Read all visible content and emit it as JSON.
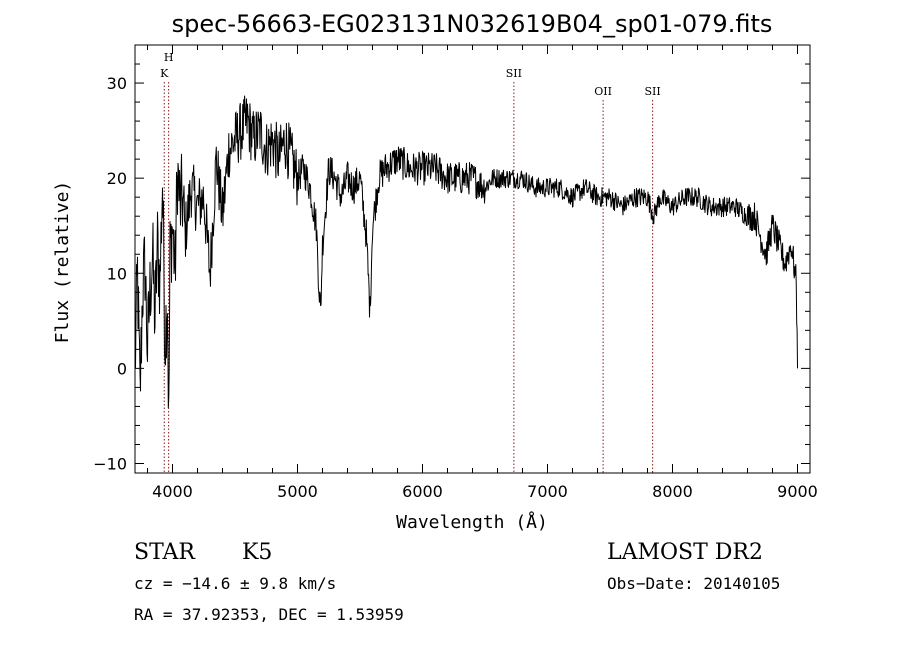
{
  "chart_data": {
    "type": "line",
    "title": "spec-56663-EG023131N032619B04_sp01-079.fits",
    "xlabel": "Wavelength (Å)",
    "ylabel": "Flux (relative)",
    "xlim": [
      3700,
      9100
    ],
    "ylim": [
      -11,
      34
    ],
    "xticks": [
      4000,
      5000,
      6000,
      7000,
      8000,
      9000
    ],
    "yticks": [
      -10,
      0,
      10,
      20,
      30
    ],
    "x_tick_labels": [
      "4000",
      "5000",
      "6000",
      "7000",
      "8000",
      "9000"
    ],
    "y_tick_labels": [
      "−10",
      "0",
      "10",
      "20",
      "30"
    ],
    "grid": false,
    "series": [
      {
        "color": "#000000",
        "x": [
          3700,
          3720,
          3740,
          3760,
          3780,
          3800,
          3820,
          3840,
          3860,
          3880,
          3900,
          3920,
          3940,
          3960,
          3970,
          3980,
          4000,
          4020,
          4040,
          4060,
          4080,
          4100,
          4150,
          4200,
          4250,
          4300,
          4350,
          4400,
          4450,
          4500,
          4550,
          4600,
          4650,
          4700,
          4750,
          4800,
          4850,
          4900,
          4950,
          5000,
          5050,
          5100,
          5150,
          5175,
          5185,
          5200,
          5250,
          5300,
          5350,
          5400,
          5450,
          5500,
          5550,
          5580,
          5600,
          5650,
          5700,
          5800,
          5900,
          6000,
          6100,
          6200,
          6300,
          6400,
          6500,
          6560,
          6600,
          6700,
          6800,
          6900,
          7000,
          7100,
          7200,
          7300,
          7400,
          7500,
          7600,
          7700,
          7800,
          7850,
          7900,
          8000,
          8100,
          8200,
          8300,
          8400,
          8500,
          8600,
          8660,
          8700,
          8750,
          8800,
          8850,
          8900,
          8950,
          8990,
          9000
        ],
        "y": [
          0,
          10,
          -3,
          8,
          11,
          2,
          8,
          12,
          5,
          13,
          9,
          20,
          3,
          8,
          -6,
          12,
          15,
          10,
          21,
          17,
          18,
          14,
          19,
          17,
          18,
          10,
          22,
          16,
          23,
          24,
          25,
          26,
          24,
          25,
          23,
          24,
          22,
          24,
          22,
          20,
          21,
          19,
          15,
          8,
          6,
          13,
          21,
          20,
          18,
          20,
          19,
          20,
          14,
          6,
          15,
          20,
          21,
          22,
          21,
          21,
          21,
          20,
          20,
          20,
          19,
          20,
          20,
          20,
          20,
          19,
          19,
          19,
          18,
          19,
          18,
          18,
          17,
          18,
          18,
          16,
          18,
          17,
          18,
          18,
          17,
          17,
          17,
          16,
          16,
          14,
          12,
          15,
          13,
          11,
          13,
          9,
          0
        ]
      }
    ],
    "annotations": [
      {
        "label": "H",
        "x": 3969,
        "row": "upper"
      },
      {
        "label": "K",
        "x": 3934,
        "row": "lower"
      },
      {
        "label": "SII",
        "x": 6731,
        "row": "upper"
      },
      {
        "label": "OII",
        "x": 7445,
        "row": "middle"
      },
      {
        "label": "SII",
        "x": 7841,
        "row": "middle"
      }
    ],
    "line_color": "#8b1a1a"
  },
  "info": {
    "class_label": "STAR",
    "subclass_label": "K5",
    "survey": "LAMOST DR2",
    "cz": "cz = −14.6 ± 9.8 km/s",
    "obs_date": "Obs−Date: 20140105",
    "coords": "RA =  37.92353, DEC =   1.53959"
  }
}
